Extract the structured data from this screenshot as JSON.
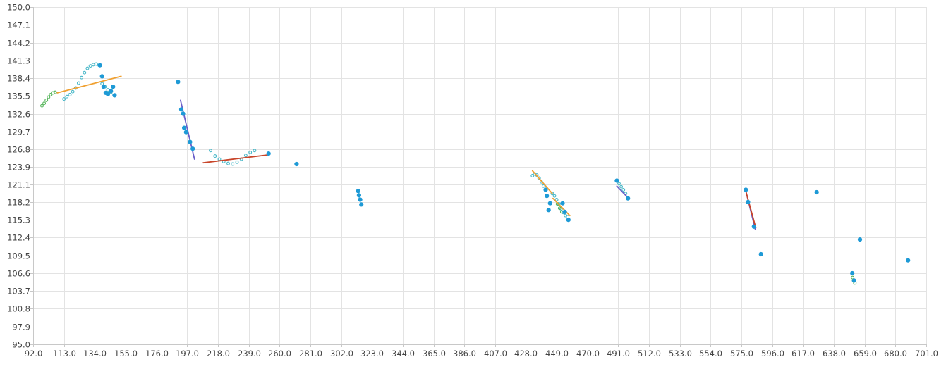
{
  "chart_data": {
    "type": "scatter",
    "title": "",
    "xlabel": "",
    "ylabel": "",
    "xlim": [
      92.0,
      701.0
    ],
    "ylim": [
      95.0,
      150.0
    ],
    "grid": true,
    "legend": "none",
    "x_ticks": [
      "92.0",
      "113.0",
      "134.0",
      "155.0",
      "176.0",
      "197.0",
      "218.0",
      "239.0",
      "260.0",
      "281.0",
      "302.0",
      "323.0",
      "344.0",
      "365.0",
      "386.0",
      "407.0",
      "428.0",
      "449.0",
      "470.0",
      "491.0",
      "512.0",
      "533.0",
      "554.0",
      "575.0",
      "596.0",
      "617.0",
      "638.0",
      "659.0",
      "680.0",
      "701.0"
    ],
    "y_ticks": [
      "150.0",
      "147.1",
      "144.2",
      "141.3",
      "138.4",
      "135.5",
      "132.6",
      "129.7",
      "126.8",
      "123.9",
      "121.1",
      "118.2",
      "115.3",
      "112.4",
      "109.5",
      "106.6",
      "103.7",
      "100.8",
      "97.9",
      "95.0"
    ],
    "colors": {
      "points": "#1e9ad6",
      "trace_green": "#55b55a",
      "trace_teal": "#49b8c8",
      "line_orange": "#f0a030",
      "line_purple": "#6b5fc9",
      "line_red": "#c8452a"
    },
    "points": [
      {
        "x": 137.5,
        "y": 140.5
      },
      {
        "x": 139.0,
        "y": 138.7
      },
      {
        "x": 140.0,
        "y": 137.0
      },
      {
        "x": 141.5,
        "y": 136.0
      },
      {
        "x": 143.0,
        "y": 135.8
      },
      {
        "x": 145.0,
        "y": 136.3
      },
      {
        "x": 146.5,
        "y": 137.0
      },
      {
        "x": 147.5,
        "y": 135.6
      },
      {
        "x": 190.8,
        "y": 137.8
      },
      {
        "x": 193.0,
        "y": 133.3
      },
      {
        "x": 194.2,
        "y": 132.6
      },
      {
        "x": 195.0,
        "y": 130.3
      },
      {
        "x": 196.3,
        "y": 129.6
      },
      {
        "x": 199.0,
        "y": 128.0
      },
      {
        "x": 200.8,
        "y": 126.9
      },
      {
        "x": 252.5,
        "y": 126.1
      },
      {
        "x": 271.6,
        "y": 124.4
      },
      {
        "x": 313.6,
        "y": 120.0
      },
      {
        "x": 314.2,
        "y": 119.3
      },
      {
        "x": 315.0,
        "y": 118.6
      },
      {
        "x": 315.8,
        "y": 117.8
      },
      {
        "x": 441.5,
        "y": 120.2
      },
      {
        "x": 442.3,
        "y": 119.2
      },
      {
        "x": 443.5,
        "y": 116.9
      },
      {
        "x": 444.5,
        "y": 118.0
      },
      {
        "x": 453.0,
        "y": 118.0
      },
      {
        "x": 454.5,
        "y": 116.6
      },
      {
        "x": 457.0,
        "y": 115.3
      },
      {
        "x": 490.0,
        "y": 121.7
      },
      {
        "x": 497.6,
        "y": 118.8
      },
      {
        "x": 578.0,
        "y": 120.2
      },
      {
        "x": 579.5,
        "y": 118.2
      },
      {
        "x": 583.5,
        "y": 114.2
      },
      {
        "x": 588.3,
        "y": 109.7
      },
      {
        "x": 626.3,
        "y": 119.8
      },
      {
        "x": 650.6,
        "y": 106.6
      },
      {
        "x": 651.8,
        "y": 105.4
      },
      {
        "x": 655.8,
        "y": 112.1
      },
      {
        "x": 688.6,
        "y": 108.7
      }
    ],
    "traces": [
      {
        "color": "trace_green",
        "points": [
          [
            98.0,
            133.9
          ],
          [
            99.5,
            134.3
          ],
          [
            101.0,
            134.8
          ],
          [
            102.5,
            135.3
          ],
          [
            104.0,
            135.7
          ],
          [
            105.5,
            136.0
          ],
          [
            107.0,
            136.1
          ]
        ]
      },
      {
        "color": "trace_teal",
        "points": [
          [
            113.0,
            135.0
          ],
          [
            115.0,
            135.4
          ],
          [
            117.0,
            135.7
          ],
          [
            119.0,
            136.2
          ],
          [
            121.0,
            136.8
          ],
          [
            123.0,
            137.6
          ],
          [
            125.0,
            138.5
          ],
          [
            127.0,
            139.3
          ],
          [
            129.0,
            140.0
          ],
          [
            131.0,
            140.4
          ],
          [
            133.0,
            140.6
          ],
          [
            135.0,
            140.7
          ],
          [
            137.0,
            140.5
          ]
        ]
      },
      {
        "color": "trace_teal",
        "points": [
          [
            139.0,
            137.5
          ],
          [
            141.0,
            137.0
          ],
          [
            143.0,
            136.5
          ],
          [
            145.0,
            136.1
          ]
        ]
      },
      {
        "color": "trace_teal",
        "points": [
          [
            213.0,
            126.6
          ],
          [
            216.0,
            125.7
          ],
          [
            219.0,
            125.2
          ],
          [
            222.0,
            124.8
          ],
          [
            225.0,
            124.5
          ],
          [
            228.0,
            124.4
          ],
          [
            231.0,
            124.7
          ],
          [
            234.0,
            125.2
          ],
          [
            237.0,
            125.8
          ],
          [
            240.0,
            126.3
          ],
          [
            243.0,
            126.6
          ]
        ]
      },
      {
        "color": "trace_teal",
        "points": [
          [
            432.5,
            122.5
          ],
          [
            434.0,
            122.8
          ],
          [
            435.5,
            122.6
          ],
          [
            437.0,
            122.1
          ],
          [
            438.5,
            121.5
          ],
          [
            440.0,
            120.8
          ],
          [
            441.5,
            120.1
          ]
        ]
      },
      {
        "color": "trace_teal",
        "points": [
          [
            446.0,
            119.6
          ],
          [
            447.5,
            119.2
          ],
          [
            449.0,
            118.6
          ],
          [
            450.5,
            117.9
          ],
          [
            452.0,
            117.1
          ],
          [
            453.5,
            116.5
          ],
          [
            455.0,
            116.0
          ],
          [
            456.5,
            115.8
          ]
        ]
      },
      {
        "color": "trace_green",
        "points": [
          [
            449.5,
            117.9
          ],
          [
            451.0,
            117.2
          ],
          [
            452.5,
            116.6
          ]
        ]
      },
      {
        "color": "trace_teal",
        "points": [
          [
            491.5,
            121.2
          ],
          [
            493.0,
            120.7
          ],
          [
            494.5,
            120.2
          ],
          [
            496.0,
            119.6
          ]
        ]
      },
      {
        "color": "trace_green",
        "points": [
          [
            650.8,
            105.9
          ],
          [
            651.5,
            105.4
          ],
          [
            652.3,
            105.0
          ]
        ]
      }
    ],
    "lines": [
      {
        "color": "line_orange",
        "x": [
          108.5,
          152.0
        ],
        "y": [
          136.0,
          138.7
        ]
      },
      {
        "color": "line_purple",
        "x": [
          192.5,
          202.0
        ],
        "y": [
          134.8,
          125.2
        ]
      },
      {
        "color": "line_red",
        "x": [
          208.0,
          252.5
        ],
        "y": [
          124.6,
          125.9
        ]
      },
      {
        "color": "line_orange",
        "x": [
          432.5,
          446.0
        ],
        "y": [
          123.3,
          119.6
        ]
      },
      {
        "color": "line_orange",
        "x": [
          446.5,
          458.0
        ],
        "y": [
          118.8,
          116.0
        ]
      },
      {
        "color": "line_purple",
        "x": [
          490.0,
          498.5
        ],
        "y": [
          120.8,
          118.7
        ]
      },
      {
        "color": "line_purple",
        "x": [
          578.0,
          584.5
        ],
        "y": [
          120.0,
          113.7
        ]
      },
      {
        "color": "line_red",
        "x": [
          578.3,
          584.8
        ],
        "y": [
          119.7,
          114.0
        ]
      }
    ]
  }
}
